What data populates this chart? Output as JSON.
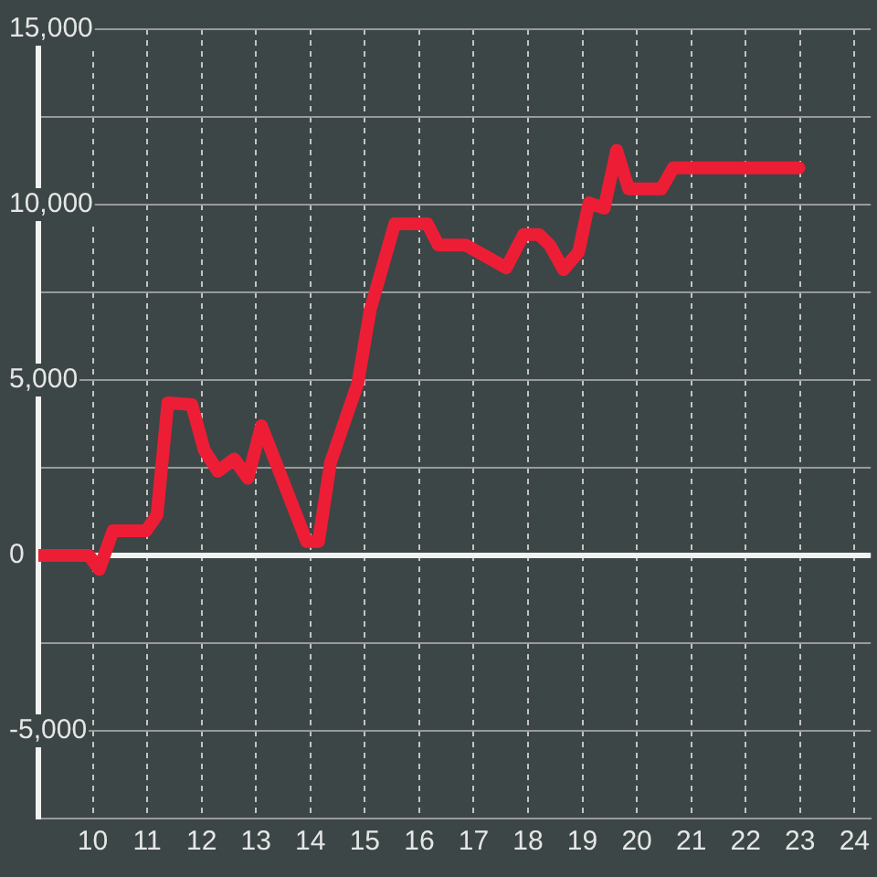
{
  "chart_data": {
    "type": "line",
    "x": [
      9,
      9.93,
      10.12,
      10.37,
      10.98,
      11.18,
      11.38,
      11.82,
      12.05,
      12.3,
      12.6,
      12.85,
      13.1,
      13.93,
      14.15,
      14.37,
      14.87,
      15.1,
      15.55,
      16.15,
      16.35,
      16.85,
      17.6,
      17.92,
      18.2,
      18.4,
      18.65,
      18.93,
      19.12,
      19.4,
      19.63,
      19.85,
      20.45,
      20.67,
      22.98
    ],
    "values": [
      0,
      0,
      -400,
      700,
      700,
      1150,
      4350,
      4300,
      3000,
      2400,
      2750,
      2200,
      3700,
      400,
      400,
      2650,
      4900,
      7000,
      9450,
      9450,
      8850,
      8850,
      8200,
      9150,
      9150,
      8850,
      8150,
      8650,
      10050,
      9900,
      11550,
      10450,
      10450,
      11050,
      11050
    ],
    "color": "#ee1d36",
    "xlim": [
      9,
      24.3
    ],
    "xticks": [
      10,
      11,
      12,
      13,
      14,
      15,
      16,
      17,
      18,
      19,
      20,
      21,
      22,
      23,
      24
    ],
    "ylim": [
      -7500,
      15000
    ],
    "yticks": [
      {
        "value": -7500,
        "label": null
      },
      {
        "value": -5000,
        "label": "-5,000"
      },
      {
        "value": -2500,
        "label": null
      },
      0,
      {
        "value": 2500,
        "label": null
      },
      {
        "value": 5000,
        "label": "5,000"
      },
      {
        "value": 7500,
        "label": null
      },
      {
        "value": 10000,
        "label": "10,000"
      },
      {
        "value": 12500,
        "label": null
      },
      {
        "value": 15000,
        "label": "15,000"
      }
    ],
    "ref_lines": [
      {
        "axis": "y",
        "value": 0,
        "color": "#f2f2f2"
      }
    ],
    "grid": true,
    "legend": false,
    "marker": "none",
    "line_style": "solid"
  }
}
